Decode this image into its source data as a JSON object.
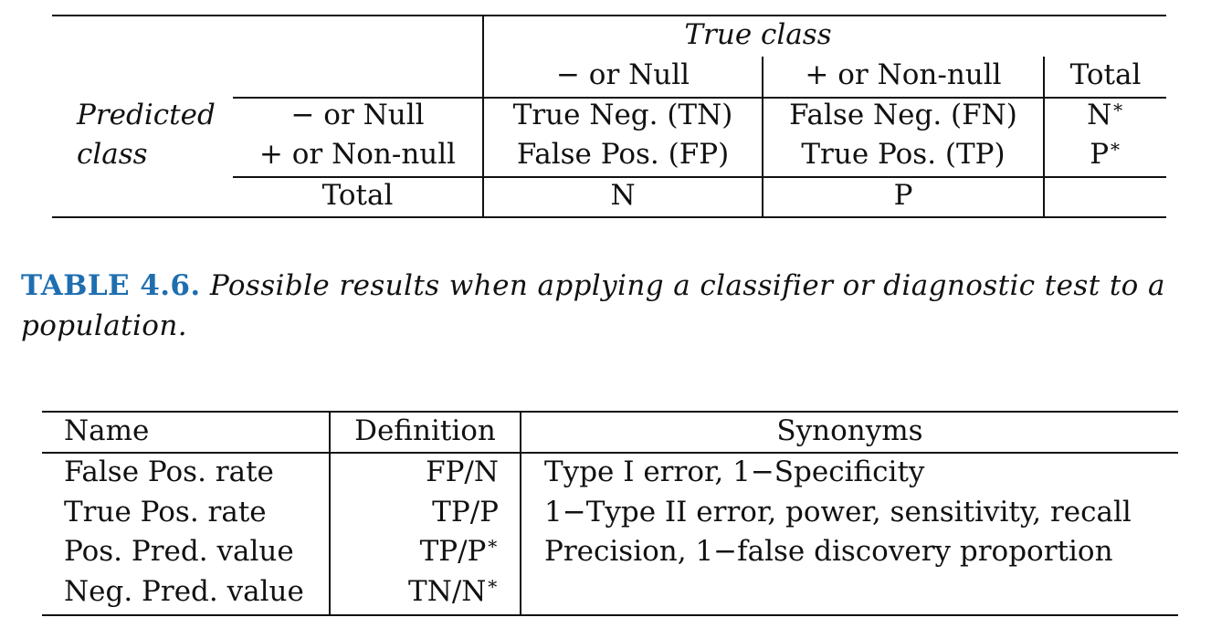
{
  "confusion_table": {
    "header": {
      "true_class": "True class",
      "col_null": "− or Null",
      "col_nonnull": "+ or Non-null",
      "col_total": "Total"
    },
    "row_group_label_1": "Predicted",
    "row_group_label_2": "class",
    "rows": [
      {
        "label": "− or Null",
        "c1": "True Neg. (TN)",
        "c2": "False Neg. (FN)",
        "total": "N",
        "total_sup": "∗"
      },
      {
        "label": "+ or Non-null",
        "c1": "False Pos. (FP)",
        "c2": "True Pos. (TP)",
        "total": "P",
        "total_sup": "∗"
      }
    ],
    "footer": {
      "label": "Total",
      "c1": "N",
      "c2": "P"
    }
  },
  "caption": {
    "label": "TABLE 4.6.",
    "text": "Possible results when applying a classifier or diagnostic test to a",
    "text_line2": "population."
  },
  "definitions_table": {
    "headers": {
      "name": "Name",
      "definition": "Definition",
      "synonyms": "Synonyms"
    },
    "rows": [
      {
        "name": "False Pos. rate",
        "definition": "FP/N",
        "definition_sup": "",
        "synonyms": "Type I error, 1−Specificity"
      },
      {
        "name": "True Pos. rate",
        "definition": "TP/P",
        "definition_sup": "",
        "synonyms": "1−Type II error, power, sensitivity, recall"
      },
      {
        "name": "Pos. Pred. value",
        "definition": "TP/P",
        "definition_sup": "∗",
        "synonyms": "Precision, 1−false discovery proportion"
      },
      {
        "name": "Neg. Pred. value",
        "definition": "TN/N",
        "definition_sup": "∗",
        "synonyms": ""
      }
    ]
  }
}
